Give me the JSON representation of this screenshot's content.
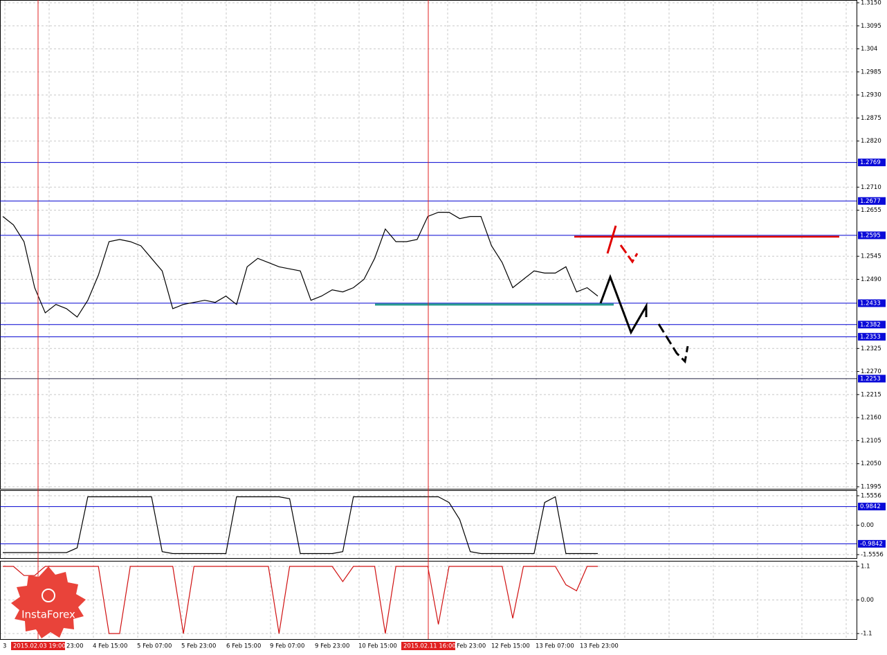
{
  "chart_data": [
    {
      "type": "line",
      "color": "#000000",
      "values": [
        1.264,
        1.262,
        1.258,
        1.247,
        1.241,
        1.243,
        1.242,
        1.24,
        1.244,
        1.25,
        1.258,
        1.2585,
        1.258,
        1.257,
        1.254,
        1.251,
        1.242,
        1.243,
        1.2435,
        1.244,
        1.2435,
        1.245,
        1.243,
        1.252,
        1.254,
        1.253,
        1.252,
        1.2515,
        1.251,
        1.244,
        1.245,
        1.2465,
        1.246,
        1.247,
        1.249,
        1.254,
        1.261,
        1.258,
        1.258,
        1.2585,
        1.264,
        1.265,
        1.265,
        1.2635,
        1.264,
        1.264,
        1.257,
        1.253,
        1.247,
        1.249,
        1.251,
        1.2505,
        1.2505,
        1.252,
        1.246,
        1.247,
        1.245
      ],
      "ylim": [
        1.1995,
        1.315
      ],
      "yticks": [
        {
          "value": 1.315,
          "label": "1.3150"
        },
        1.3095,
        1.304,
        1.2985,
        {
          "value": 1.293,
          "label": "1.2930"
        },
        1.2875,
        {
          "value": 1.282,
          "label": "1.2820"
        },
        {
          "value": 1.271,
          "label": "1.2710"
        },
        1.2655,
        1.2545,
        {
          "value": 1.249,
          "label": "1.2490"
        },
        1.2325,
        {
          "value": 1.227,
          "label": "1.2270"
        },
        1.2215,
        {
          "value": 1.216,
          "label": "1.2160"
        },
        1.2105,
        {
          "value": 1.205,
          "label": "1.2050"
        },
        1.1995
      ],
      "levels": [
        1.2769,
        1.2677,
        1.2595,
        1.2433,
        1.2382,
        1.2353,
        1.2253
      ],
      "x_labels": [
        "3",
        "2015.02.03 19:00",
        "23:00",
        "4 Feb 15:00",
        "5 Feb 07:00",
        "5 Feb 23:00",
        "6 Feb 15:00",
        "9 Feb 07:00",
        "9 Feb 23:00",
        "10 Feb 15:00",
        "2015.02.11 16:00",
        "Feb 23:00",
        "12 Feb 15:00",
        "13 Feb 07:00",
        "13 Feb 23:00"
      ],
      "grid": true
    },
    {
      "type": "line",
      "color": "#000000",
      "values": [
        -1.45,
        -1.45,
        -1.45,
        -1.45,
        -1.45,
        -1.45,
        -1.45,
        -1.2,
        1.5,
        1.5,
        1.5,
        1.5,
        1.5,
        1.5,
        1.5,
        -1.4,
        -1.5,
        -1.5,
        -1.5,
        -1.5,
        -1.5,
        -1.5,
        1.5,
        1.5,
        1.5,
        1.5,
        1.5,
        1.4,
        -1.5,
        -1.5,
        -1.5,
        -1.5,
        -1.4,
        1.5,
        1.5,
        1.5,
        1.5,
        1.5,
        1.5,
        1.5,
        1.5,
        1.5,
        1.2,
        0.3,
        -1.4,
        -1.5,
        -1.5,
        -1.5,
        -1.5,
        -1.5,
        -1.5,
        1.2,
        1.5,
        -1.5,
        -1.5,
        -1.5,
        -1.5
      ],
      "ylim": [
        -1.5556,
        1.5556
      ],
      "yticks": [
        1.5556,
        {
          "value": 0,
          "label": "0.00"
        },
        -1.5556
      ],
      "levels": [
        0.9842,
        -0.9842
      ],
      "grid": true
    },
    {
      "type": "line",
      "color": "#d01010",
      "values": [
        1.1,
        1.1,
        0.8,
        0.8,
        1.1,
        1.1,
        1.1,
        1.1,
        1.1,
        1.1,
        -1.1,
        -1.1,
        1.1,
        1.1,
        1.1,
        1.1,
        1.1,
        -1.1,
        1.1,
        1.1,
        1.1,
        1.1,
        1.1,
        1.1,
        1.1,
        1.1,
        -1.1,
        1.1,
        1.1,
        1.1,
        1.1,
        1.1,
        0.6,
        1.1,
        1.1,
        1.1,
        -1.1,
        1.1,
        1.1,
        1.1,
        1.1,
        -0.8,
        1.1,
        1.1,
        1.1,
        1.1,
        1.1,
        1.1,
        -0.6,
        1.1,
        1.1,
        1.1,
        1.1,
        0.5,
        0.3,
        1.1,
        1.1
      ],
      "ylim": [
        -1.1,
        1.1
      ],
      "yticks": [
        1.1,
        {
          "value": 0,
          "label": "0.00"
        },
        -1.1
      ],
      "grid": true
    }
  ],
  "watermark": "InstaForex"
}
